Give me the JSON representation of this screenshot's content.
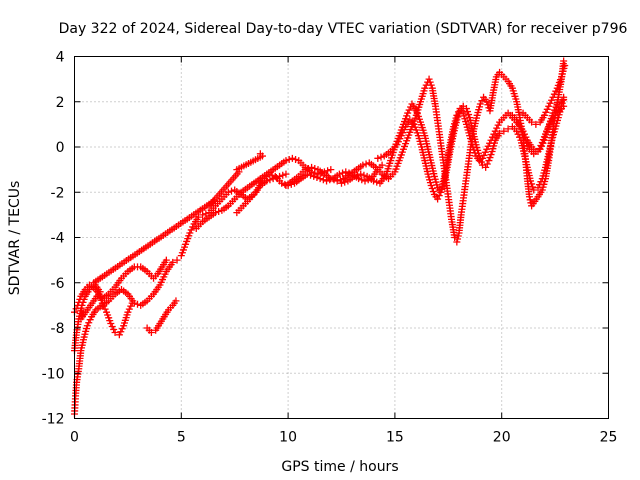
{
  "chart_data": {
    "type": "scatter",
    "title": "Day 322 of 2024, Sidereal Day-to-day VTEC variation (SDTVAR) for receiver p796",
    "xlabel": "GPS time / hours",
    "ylabel": "SDTVAR / TECUs",
    "xlim": [
      0,
      25
    ],
    "ylim": [
      -12,
      4
    ],
    "xticks": [
      "0",
      "5",
      "10",
      "15",
      "20",
      "25"
    ],
    "yticks": [
      "-12",
      "-10",
      "-8",
      "-6",
      "-4",
      "-2",
      "0",
      "2",
      "4"
    ],
    "grid": true,
    "marker": "plus",
    "color": "#ff0000",
    "tracks": [
      [
        [
          0.0,
          -11.8
        ],
        [
          0.05,
          -11.0
        ],
        [
          0.1,
          -10.4
        ],
        [
          0.2,
          -9.8
        ],
        [
          0.3,
          -9.0
        ],
        [
          0.45,
          -8.4
        ],
        [
          0.6,
          -7.9
        ],
        [
          0.8,
          -7.5
        ],
        [
          1.0,
          -7.2
        ],
        [
          1.3,
          -7.0
        ],
        [
          1.6,
          -6.8
        ],
        [
          1.9,
          -6.5
        ],
        [
          2.2,
          -6.3
        ],
        [
          2.5,
          -6.5
        ],
        [
          2.8,
          -6.9
        ],
        [
          3.1,
          -7.0
        ],
        [
          3.4,
          -6.8
        ],
        [
          3.7,
          -6.5
        ],
        [
          4.0,
          -6.1
        ],
        [
          4.3,
          -5.5
        ],
        [
          4.6,
          -5.1
        ],
        [
          4.8,
          -5.0
        ]
      ],
      [
        [
          0.0,
          -9.0
        ],
        [
          0.1,
          -8.2
        ],
        [
          0.2,
          -7.6
        ],
        [
          0.35,
          -7.0
        ],
        [
          0.5,
          -6.6
        ],
        [
          0.7,
          -6.3
        ],
        [
          0.9,
          -6.2
        ],
        [
          1.1,
          -6.4
        ],
        [
          1.3,
          -6.9
        ],
        [
          1.5,
          -7.3
        ],
        [
          1.7,
          -7.8
        ],
        [
          1.9,
          -8.2
        ],
        [
          2.1,
          -8.3
        ],
        [
          2.3,
          -7.9
        ],
        [
          2.5,
          -7.3
        ],
        [
          2.7,
          -6.9
        ]
      ],
      [
        [
          0.0,
          -7.3
        ],
        [
          0.15,
          -7.0
        ],
        [
          0.3,
          -6.6
        ],
        [
          0.5,
          -6.3
        ],
        [
          0.7,
          -6.1
        ],
        [
          1.0,
          -6.3
        ],
        [
          1.3,
          -6.7
        ],
        [
          1.6,
          -6.5
        ],
        [
          1.9,
          -6.2
        ],
        [
          2.2,
          -5.8
        ],
        [
          2.5,
          -5.5
        ],
        [
          2.8,
          -5.3
        ],
        [
          3.1,
          -5.3
        ],
        [
          3.4,
          -5.5
        ],
        [
          3.7,
          -5.8
        ],
        [
          3.9,
          -5.6
        ],
        [
          4.1,
          -5.3
        ],
        [
          4.3,
          -5.0
        ]
      ],
      [
        [
          3.4,
          -8.0
        ],
        [
          3.6,
          -8.2
        ],
        [
          3.8,
          -8.1
        ],
        [
          4.0,
          -7.8
        ],
        [
          4.2,
          -7.5
        ],
        [
          4.4,
          -7.2
        ],
        [
          4.6,
          -7.0
        ],
        [
          4.75,
          -6.8
        ]
      ],
      [
        [
          5.0,
          -4.8
        ],
        [
          5.2,
          -4.3
        ],
        [
          5.4,
          -3.8
        ],
        [
          5.6,
          -3.4
        ],
        [
          5.8,
          -3.1
        ],
        [
          6.0,
          -3.0
        ],
        [
          6.3,
          -2.9
        ],
        [
          6.6,
          -2.6
        ],
        [
          6.9,
          -2.3
        ],
        [
          7.2,
          -2.0
        ],
        [
          7.5,
          -1.9
        ],
        [
          7.8,
          -2.1
        ],
        [
          8.1,
          -2.3
        ],
        [
          8.4,
          -2.1
        ],
        [
          8.7,
          -1.7
        ],
        [
          9.0,
          -1.5
        ],
        [
          9.3,
          -1.4
        ],
        [
          9.6,
          -1.3
        ],
        [
          9.9,
          -1.2
        ]
      ],
      [
        [
          5.7,
          -3.6
        ],
        [
          6.0,
          -3.3
        ],
        [
          6.3,
          -3.1
        ],
        [
          6.6,
          -2.9
        ],
        [
          6.9,
          -2.8
        ],
        [
          7.2,
          -2.6
        ],
        [
          7.5,
          -2.3
        ],
        [
          7.8,
          -2.0
        ],
        [
          8.1,
          -1.8
        ],
        [
          8.4,
          -1.6
        ],
        [
          8.7,
          -1.4
        ],
        [
          9.0,
          -1.2
        ],
        [
          9.3,
          -1.0
        ],
        [
          9.6,
          -0.8
        ],
        [
          9.9,
          -0.6
        ],
        [
          10.2,
          -0.5
        ],
        [
          10.5,
          -0.6
        ],
        [
          10.8,
          -0.9
        ],
        [
          11.1,
          -1.1
        ],
        [
          11.4,
          -1.2
        ],
        [
          11.7,
          -1.1
        ],
        [
          12.0,
          -1.0
        ]
      ],
      [
        [
          7.6,
          -2.9
        ],
        [
          7.9,
          -2.6
        ],
        [
          8.2,
          -2.3
        ],
        [
          8.5,
          -2.0
        ],
        [
          8.8,
          -1.5
        ],
        [
          9.1,
          -1.2
        ],
        [
          9.4,
          -1.3
        ],
        [
          9.7,
          -1.6
        ],
        [
          10.0,
          -1.7
        ],
        [
          10.3,
          -1.6
        ],
        [
          10.6,
          -1.4
        ],
        [
          10.9,
          -1.2
        ],
        [
          11.2,
          -1.3
        ],
        [
          11.5,
          -1.4
        ],
        [
          11.8,
          -1.5
        ],
        [
          12.1,
          -1.4
        ],
        [
          12.4,
          -1.2
        ],
        [
          12.7,
          -1.1
        ],
        [
          13.0,
          -1.2
        ],
        [
          13.3,
          -1.4
        ],
        [
          13.6,
          -1.5
        ],
        [
          13.9,
          -1.4
        ],
        [
          14.2,
          -1.0
        ],
        [
          14.4,
          -0.8
        ]
      ],
      [
        [
          9.9,
          -1.7
        ],
        [
          10.2,
          -1.5
        ],
        [
          10.5,
          -1.3
        ],
        [
          10.8,
          -1.0
        ],
        [
          11.1,
          -0.9
        ],
        [
          11.4,
          -1.0
        ],
        [
          11.7,
          -1.2
        ],
        [
          12.0,
          -1.4
        ],
        [
          12.3,
          -1.5
        ],
        [
          12.6,
          -1.4
        ],
        [
          12.9,
          -1.2
        ],
        [
          13.2,
          -1.0
        ],
        [
          13.5,
          -0.8
        ],
        [
          13.8,
          -0.7
        ],
        [
          14.1,
          -0.9
        ],
        [
          14.4,
          -1.2
        ],
        [
          14.7,
          -1.4
        ],
        [
          15.0,
          -1.1
        ],
        [
          15.2,
          -0.6
        ],
        [
          15.4,
          -0.1
        ],
        [
          15.6,
          0.4
        ],
        [
          15.8,
          0.9
        ],
        [
          16.0,
          1.4
        ],
        [
          16.2,
          2.0
        ],
        [
          16.4,
          2.6
        ],
        [
          16.6,
          3.0
        ],
        [
          16.75,
          2.6
        ],
        [
          16.9,
          1.8
        ],
        [
          17.05,
          0.8
        ],
        [
          17.2,
          -0.2
        ],
        [
          17.35,
          -1.2
        ],
        [
          17.5,
          -2.2
        ],
        [
          17.65,
          -3.2
        ],
        [
          17.8,
          -4.0
        ],
        [
          17.9,
          -4.2
        ],
        [
          18.0,
          -3.8
        ],
        [
          18.1,
          -3.0
        ],
        [
          18.25,
          -2.0
        ],
        [
          18.4,
          -1.0
        ],
        [
          18.55,
          0.0
        ],
        [
          18.7,
          0.8
        ],
        [
          18.85,
          1.4
        ],
        [
          19.0,
          1.9
        ],
        [
          19.15,
          2.2
        ],
        [
          19.3,
          2.0
        ],
        [
          19.45,
          1.6
        ],
        [
          19.6,
          2.4
        ],
        [
          19.75,
          3.1
        ],
        [
          19.9,
          3.3
        ],
        [
          20.1,
          3.1
        ],
        [
          20.3,
          2.9
        ],
        [
          20.5,
          2.6
        ],
        [
          20.7,
          2.0
        ],
        [
          20.85,
          1.3
        ],
        [
          21.0,
          0.4
        ],
        [
          21.1,
          -0.4
        ],
        [
          21.2,
          -1.4
        ],
        [
          21.3,
          -2.2
        ],
        [
          21.4,
          -2.6
        ],
        [
          21.55,
          -2.4
        ],
        [
          21.7,
          -2.2
        ],
        [
          21.9,
          -1.9
        ],
        [
          22.05,
          -1.4
        ],
        [
          22.2,
          -0.6
        ],
        [
          22.35,
          0.4
        ],
        [
          22.5,
          1.4
        ],
        [
          22.65,
          2.2
        ],
        [
          22.8,
          3.0
        ],
        [
          22.9,
          3.8
        ]
      ],
      [
        [
          12.5,
          -1.6
        ],
        [
          12.8,
          -1.5
        ],
        [
          13.1,
          -1.3
        ],
        [
          13.4,
          -1.2
        ],
        [
          13.7,
          -1.3
        ],
        [
          14.0,
          -1.5
        ],
        [
          14.3,
          -1.6
        ],
        [
          14.6,
          -1.2
        ],
        [
          14.8,
          -0.6
        ],
        [
          15.0,
          0.0
        ],
        [
          15.2,
          0.5
        ],
        [
          15.4,
          1.0
        ],
        [
          15.6,
          1.5
        ],
        [
          15.8,
          1.9
        ],
        [
          16.0,
          1.6
        ],
        [
          16.2,
          1.1
        ],
        [
          16.4,
          0.5
        ],
        [
          16.55,
          -0.1
        ],
        [
          16.7,
          -0.7
        ],
        [
          16.85,
          -1.3
        ],
        [
          17.0,
          -1.8
        ],
        [
          17.15,
          -2.0
        ],
        [
          17.3,
          -1.6
        ],
        [
          17.45,
          -0.9
        ],
        [
          17.6,
          -0.1
        ],
        [
          17.75,
          0.6
        ],
        [
          17.9,
          1.2
        ],
        [
          18.05,
          1.6
        ],
        [
          18.2,
          1.8
        ],
        [
          18.35,
          1.7
        ],
        [
          18.5,
          1.3
        ],
        [
          18.65,
          0.7
        ],
        [
          18.8,
          0.1
        ],
        [
          18.95,
          -0.4
        ],
        [
          19.1,
          -0.8
        ],
        [
          19.25,
          -0.9
        ],
        [
          19.4,
          -0.6
        ],
        [
          19.55,
          -0.2
        ],
        [
          19.7,
          0.3
        ],
        [
          19.9,
          0.6
        ],
        [
          20.1,
          0.7
        ],
        [
          20.3,
          0.8
        ],
        [
          20.5,
          0.9
        ],
        [
          20.7,
          0.7
        ],
        [
          20.9,
          0.3
        ],
        [
          21.05,
          -0.3
        ],
        [
          21.2,
          -0.9
        ],
        [
          21.35,
          -1.5
        ],
        [
          21.5,
          -1.9
        ],
        [
          21.7,
          -1.8
        ],
        [
          21.9,
          -1.4
        ],
        [
          22.05,
          -0.9
        ],
        [
          22.2,
          -0.3
        ],
        [
          22.35,
          0.3
        ],
        [
          22.5,
          0.8
        ],
        [
          22.65,
          1.3
        ],
        [
          22.8,
          1.8
        ],
        [
          22.9,
          2.2
        ]
      ],
      [
        [
          14.2,
          -0.5
        ],
        [
          14.5,
          -0.4
        ],
        [
          14.8,
          -0.2
        ],
        [
          15.1,
          0.1
        ],
        [
          15.3,
          0.5
        ],
        [
          15.5,
          0.9
        ],
        [
          15.7,
          1.2
        ],
        [
          15.9,
          1.0
        ],
        [
          16.1,
          0.5
        ],
        [
          16.25,
          0.0
        ],
        [
          16.4,
          -0.6
        ],
        [
          16.55,
          -1.2
        ],
        [
          16.7,
          -1.7
        ],
        [
          16.85,
          -2.1
        ],
        [
          17.0,
          -2.3
        ],
        [
          17.15,
          -2.0
        ],
        [
          17.3,
          -1.4
        ],
        [
          17.45,
          -0.6
        ],
        [
          17.6,
          0.2
        ],
        [
          17.75,
          0.9
        ],
        [
          17.9,
          1.4
        ],
        [
          18.05,
          1.7
        ],
        [
          18.2,
          1.5
        ],
        [
          18.35,
          1.0
        ],
        [
          18.5,
          0.5
        ],
        [
          18.65,
          0.0
        ],
        [
          18.8,
          -0.4
        ],
        [
          18.95,
          -0.6
        ],
        [
          19.1,
          -0.5
        ],
        [
          19.3,
          -0.1
        ],
        [
          19.5,
          0.3
        ],
        [
          19.7,
          0.7
        ],
        [
          19.9,
          1.1
        ],
        [
          20.1,
          1.3
        ],
        [
          20.3,
          1.5
        ],
        [
          20.5,
          1.4
        ],
        [
          20.7,
          1.2
        ],
        [
          20.9,
          0.8
        ],
        [
          21.1,
          0.3
        ],
        [
          21.3,
          -0.1
        ],
        [
          21.5,
          -0.3
        ],
        [
          21.7,
          -0.2
        ],
        [
          21.9,
          0.2
        ],
        [
          22.1,
          0.7
        ],
        [
          22.3,
          1.1
        ],
        [
          22.5,
          1.4
        ],
        [
          22.7,
          1.6
        ],
        [
          22.9,
          1.8
        ]
      ],
      [
        [
          20.4,
          1.4
        ],
        [
          20.6,
          1.2
        ],
        [
          20.8,
          1.0
        ],
        [
          21.0,
          0.7
        ],
        [
          21.2,
          0.3
        ],
        [
          21.4,
          0.0
        ],
        [
          21.6,
          -0.2
        ],
        [
          21.8,
          -0.1
        ],
        [
          22.0,
          0.3
        ],
        [
          22.2,
          0.9
        ],
        [
          22.4,
          1.5
        ],
        [
          22.6,
          1.9
        ],
        [
          22.8,
          2.0
        ],
        [
          22.9,
          2.1
        ]
      ],
      [
        [
          21.0,
          1.5
        ],
        [
          21.2,
          1.3
        ],
        [
          21.4,
          1.1
        ],
        [
          21.6,
          1.0
        ],
        [
          21.8,
          1.1
        ],
        [
          22.0,
          1.4
        ],
        [
          22.2,
          1.8
        ],
        [
          22.4,
          2.2
        ],
        [
          22.6,
          2.6
        ],
        [
          22.8,
          3.1
        ],
        [
          22.95,
          3.6
        ]
      ],
      [
        [
          8.7,
          -0.3
        ],
        [
          8.8,
          -0.4
        ],
        [
          7.6,
          -1.0
        ],
        [
          7.7,
          -1.1
        ],
        [
          6.3,
          -2.6
        ],
        [
          6.5,
          -2.4
        ],
        [
          0.9,
          -6.0
        ],
        [
          1.2,
          -6.4
        ],
        [
          0.3,
          -7.6
        ],
        [
          0.4,
          -7.3
        ]
      ]
    ]
  }
}
